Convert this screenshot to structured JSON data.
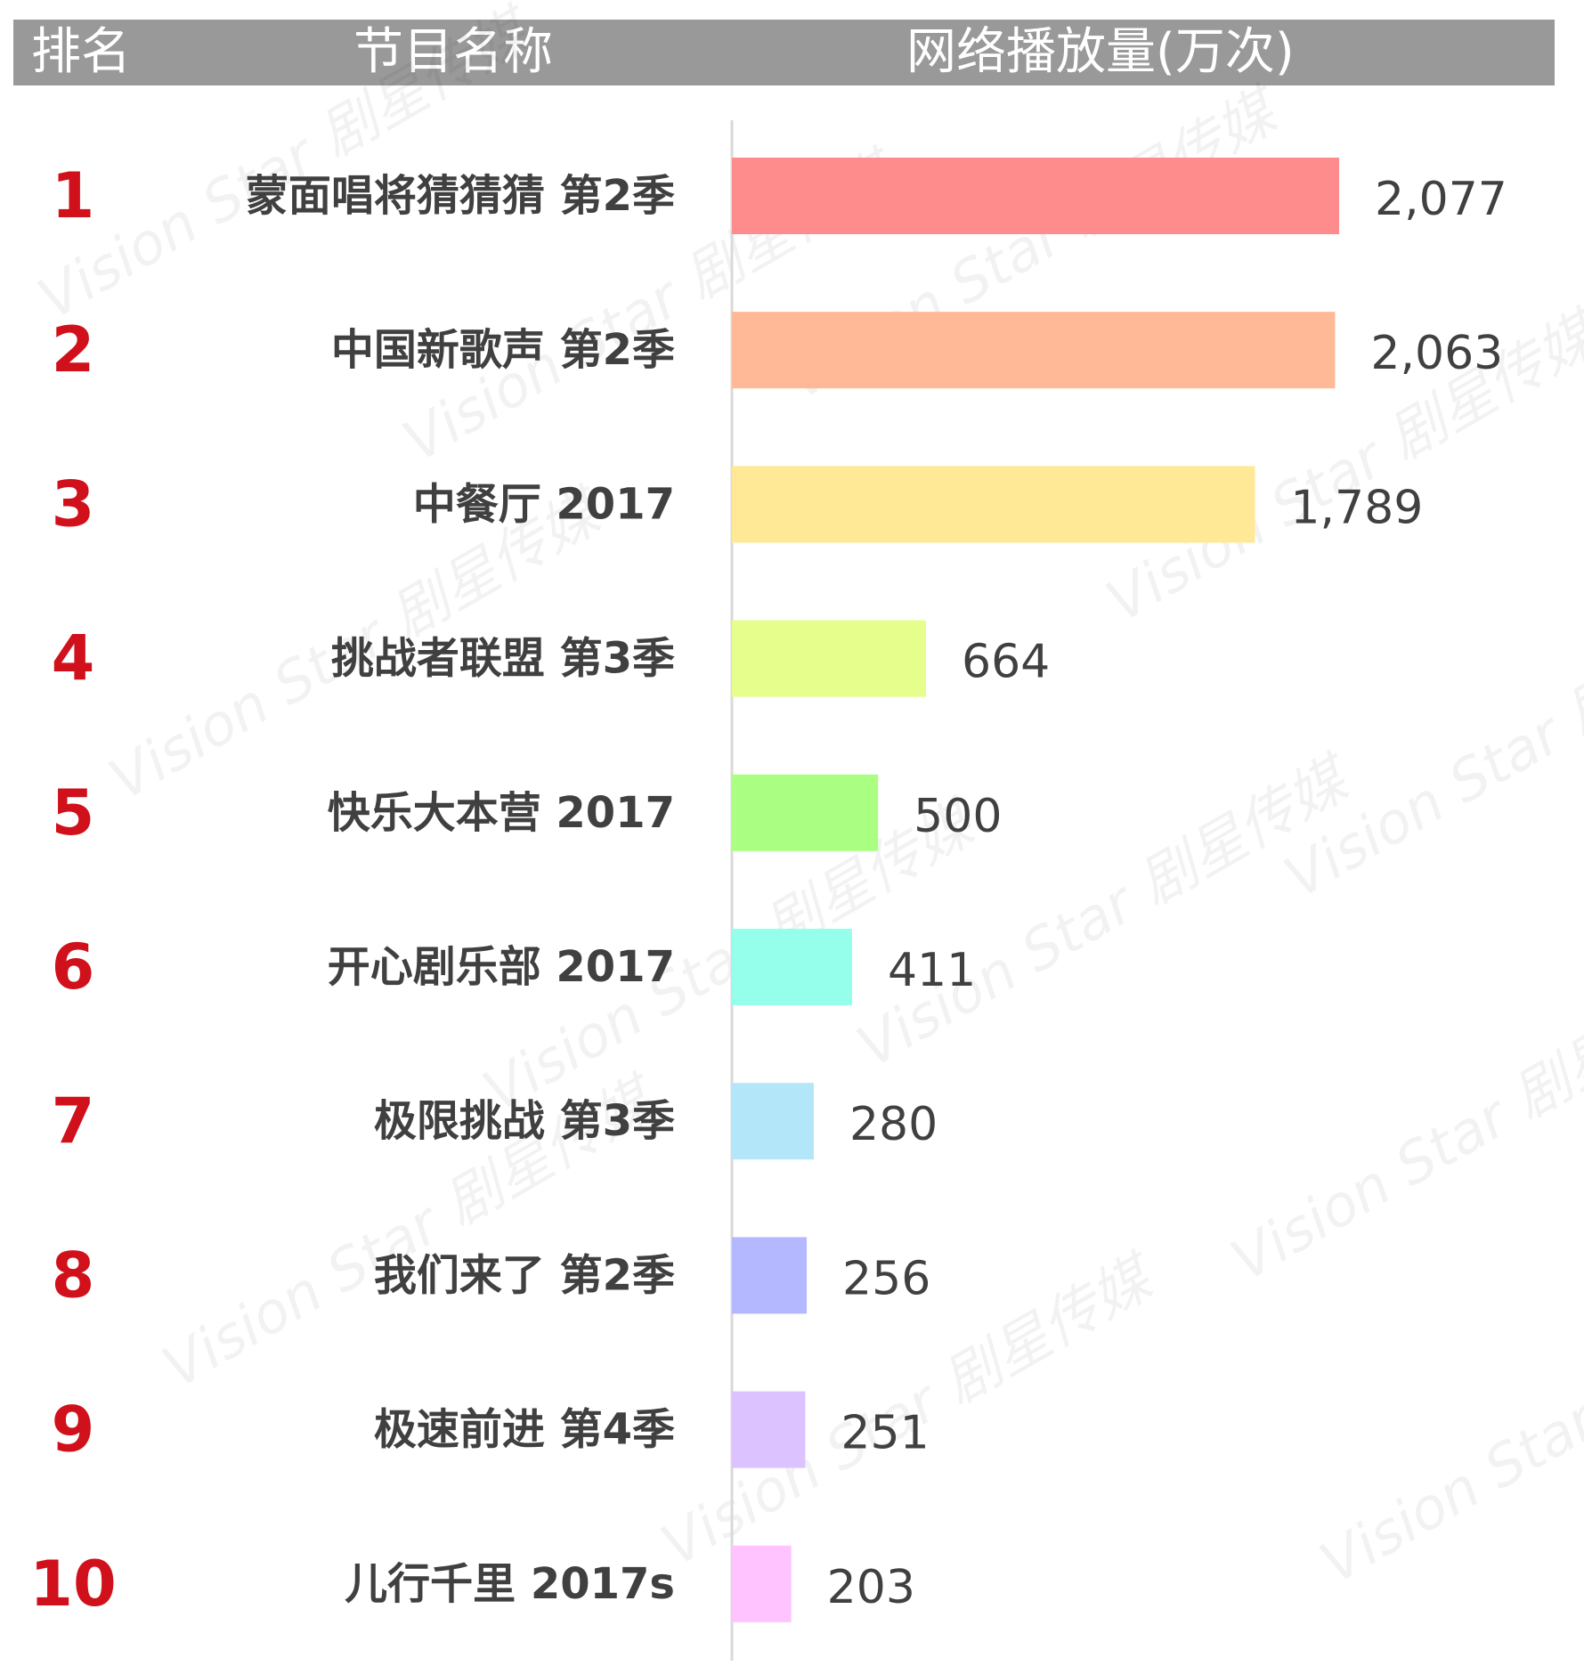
{
  "header": {
    "rank": "排名",
    "name": "节目名称",
    "value": "网络播放量(万次)"
  },
  "watermark": "Vision Star 剧星传媒",
  "colors": {
    "header_bg": "#999999",
    "rank_text": "#d0101a",
    "axis_line": "#d9d9d9"
  },
  "chart_data": {
    "type": "bar",
    "orientation": "horizontal",
    "title": "",
    "xlabel": "",
    "ylabel": "",
    "value_label": "网络播放量(万次)",
    "xlim": [
      0,
      2077
    ],
    "grid": false,
    "legend": "none",
    "rows": [
      {
        "rank": "1",
        "name": "蒙面唱将猜猜猜 第2季",
        "value": 2077,
        "label": "2,077",
        "color": "#ff8c8c"
      },
      {
        "rank": "2",
        "name": "中国新歌声 第2季",
        "value": 2063,
        "label": "2,063",
        "color": "#ffb996"
      },
      {
        "rank": "3",
        "name": "中餐厅 2017",
        "value": 1789,
        "label": "1,789",
        "color": "#ffe996"
      },
      {
        "rank": "4",
        "name": "挑战者联盟 第3季",
        "value": 664,
        "label": "664",
        "color": "#e6ff8c"
      },
      {
        "rank": "5",
        "name": "快乐大本营 2017",
        "value": 500,
        "label": "500",
        "color": "#aaff82"
      },
      {
        "rank": "6",
        "name": "开心剧乐部 2017",
        "value": 411,
        "label": "411",
        "color": "#96ffeb"
      },
      {
        "rank": "7",
        "name": "极限挑战 第3季",
        "value": 280,
        "label": "280",
        "color": "#b4e6fa"
      },
      {
        "rank": "8",
        "name": "我们来了 第2季",
        "value": 256,
        "label": "256",
        "color": "#b4b9ff"
      },
      {
        "rank": "9",
        "name": "极速前进 第4季",
        "value": 251,
        "label": "251",
        "color": "#dcc3ff"
      },
      {
        "rank": "10",
        "name": "儿行千里 2017s",
        "value": 203,
        "label": "203",
        "color": "#ffc3ff"
      }
    ]
  }
}
